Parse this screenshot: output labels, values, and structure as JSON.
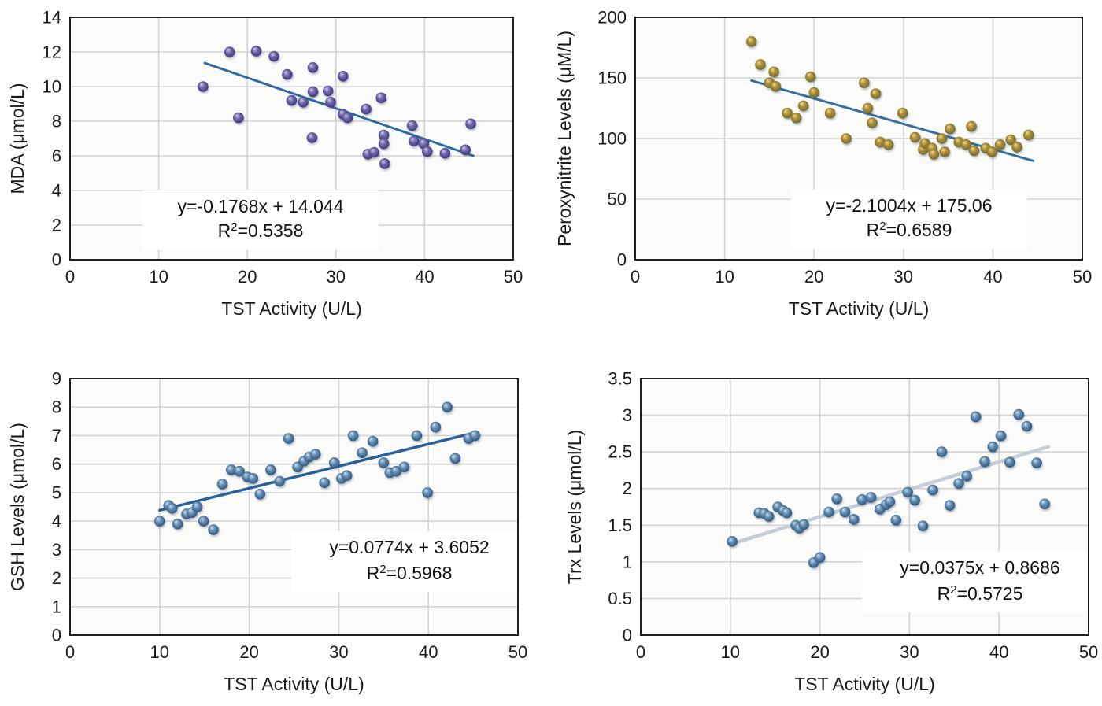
{
  "figure": {
    "shared_x_axis_title": "TST Activity (U/L)",
    "background_color": "#ffffff",
    "gridline_color": "#d2d3d5",
    "axis_border_color": "#1f1f1f",
    "tick_label_color": "#1a1a1a",
    "equation_text_color": "#101010"
  },
  "chart_data": [
    {
      "id": "mda",
      "type": "scatter",
      "title": "",
      "xlabel": "TST Activity (U/L)",
      "ylabel": "MDA (μmol/L)",
      "xlim": [
        0,
        50
      ],
      "ylim": [
        0,
        14
      ],
      "xticks": [
        0,
        10,
        20,
        30,
        40,
        50
      ],
      "yticks": [
        0,
        2,
        4,
        6,
        8,
        10,
        12,
        14
      ],
      "grid": true,
      "equation": "y=-0.1768x + 14.044",
      "r2_value": "0.5358",
      "trend": {
        "x1": 15.2,
        "y1": 11.36,
        "x2": 45.5,
        "y2": 6.0
      },
      "colors": {
        "trend": "#2f6da0",
        "marker_stops": [
          "#c9d3e8",
          "#7468ac",
          "#463f87",
          "#2c3266"
        ]
      },
      "points": [
        [
          15,
          10.0
        ],
        [
          18,
          12.0
        ],
        [
          21,
          12.05
        ],
        [
          23,
          11.75
        ],
        [
          24.5,
          10.7
        ],
        [
          27.4,
          11.1
        ],
        [
          19,
          8.2
        ],
        [
          25,
          9.2
        ],
        [
          26.3,
          9.1
        ],
        [
          27.4,
          9.7
        ],
        [
          29.1,
          9.75
        ],
        [
          29.4,
          9.1
        ],
        [
          27.3,
          7.05
        ],
        [
          30.8,
          10.6
        ],
        [
          30.8,
          8.4
        ],
        [
          31.3,
          8.2
        ],
        [
          33.4,
          8.7
        ],
        [
          35.1,
          9.35
        ],
        [
          33.6,
          6.1
        ],
        [
          34.3,
          6.2
        ],
        [
          35.4,
          7.2
        ],
        [
          35.4,
          6.7
        ],
        [
          35.5,
          5.55
        ],
        [
          38.6,
          7.75
        ],
        [
          38.8,
          6.85
        ],
        [
          39.9,
          6.7
        ],
        [
          40.3,
          6.25
        ],
        [
          42.3,
          6.15
        ],
        [
          44.6,
          6.35
        ],
        [
          45.2,
          7.85
        ]
      ]
    },
    {
      "id": "peroxynitrite",
      "type": "scatter",
      "title": "",
      "xlabel": "TST Activity (U/L)",
      "ylabel": "Peroxynitrite Levels (μM/L)",
      "xlim": [
        0,
        50
      ],
      "ylim": [
        0,
        200
      ],
      "xticks": [
        0,
        10,
        20,
        30,
        40,
        50
      ],
      "yticks": [
        0,
        50,
        100,
        150,
        200
      ],
      "grid": true,
      "equation": "y=-2.1004x + 175.06",
      "r2_value": "0.6589",
      "trend": {
        "x1": 13.0,
        "y1": 147.8,
        "x2": 44.5,
        "y2": 81.6
      },
      "colors": {
        "trend": "#35709f",
        "marker_stops": [
          "#e9dba2",
          "#b2902f",
          "#77713a",
          "#44504e"
        ]
      },
      "points": [
        [
          13,
          180
        ],
        [
          14,
          161
        ],
        [
          15.5,
          155
        ],
        [
          15,
          146
        ],
        [
          15.7,
          143
        ],
        [
          19.6,
          151
        ],
        [
          20,
          138
        ],
        [
          18.8,
          127
        ],
        [
          17,
          121
        ],
        [
          18,
          117
        ],
        [
          21.8,
          121
        ],
        [
          25.6,
          146
        ],
        [
          26.9,
          137
        ],
        [
          26,
          125
        ],
        [
          26.5,
          113
        ],
        [
          23.6,
          100
        ],
        [
          27.4,
          97
        ],
        [
          28.3,
          95
        ],
        [
          29.9,
          121
        ],
        [
          31.3,
          101
        ],
        [
          32.2,
          91
        ],
        [
          32.4,
          96
        ],
        [
          33.2,
          92
        ],
        [
          33.4,
          87
        ],
        [
          34.3,
          100
        ],
        [
          34.6,
          89
        ],
        [
          35.2,
          108
        ],
        [
          36.2,
          97
        ],
        [
          37.0,
          95
        ],
        [
          37.6,
          110
        ],
        [
          37.9,
          90
        ],
        [
          39.2,
          92
        ],
        [
          39.9,
          89
        ],
        [
          40.8,
          95
        ],
        [
          42.0,
          99
        ],
        [
          42.7,
          93
        ],
        [
          44.0,
          103
        ]
      ]
    },
    {
      "id": "gsh",
      "type": "scatter",
      "title": "",
      "xlabel": "TST Activity (U/L)",
      "ylabel": "GSH Levels (μmol/L)",
      "xlim": [
        0,
        50
      ],
      "ylim": [
        0,
        9
      ],
      "xticks": [
        0,
        10,
        20,
        30,
        40,
        50
      ],
      "yticks": [
        0,
        1,
        2,
        3,
        4,
        5,
        6,
        7,
        8,
        9
      ],
      "grid": true,
      "equation": "y=0.0774x + 3.6052",
      "r2_value": "0.5968",
      "trend": {
        "x1": 10.0,
        "y1": 4.38,
        "x2": 45.3,
        "y2": 7.11
      },
      "colors": {
        "trend": "#2b5f9a",
        "marker_stops": [
          "#d2dfec",
          "#6890b3",
          "#35608a",
          "#203e5e"
        ]
      },
      "points": [
        [
          10,
          4.0
        ],
        [
          11,
          4.55
        ],
        [
          11.4,
          4.45
        ],
        [
          12,
          3.9
        ],
        [
          13,
          4.25
        ],
        [
          13.6,
          4.3
        ],
        [
          14.2,
          4.5
        ],
        [
          14.9,
          4.0
        ],
        [
          16,
          3.7
        ],
        [
          17,
          5.3
        ],
        [
          18,
          5.8
        ],
        [
          18.9,
          5.75
        ],
        [
          19.8,
          5.55
        ],
        [
          20.4,
          5.5
        ],
        [
          21.2,
          4.95
        ],
        [
          22.4,
          5.8
        ],
        [
          23.4,
          5.4
        ],
        [
          24.4,
          6.9
        ],
        [
          25.4,
          5.9
        ],
        [
          26.1,
          6.1
        ],
        [
          26.7,
          6.25
        ],
        [
          27.4,
          6.35
        ],
        [
          28.4,
          5.35
        ],
        [
          29.5,
          6.05
        ],
        [
          30.3,
          5.5
        ],
        [
          30.9,
          5.6
        ],
        [
          31.6,
          7.0
        ],
        [
          32.6,
          6.4
        ],
        [
          33.8,
          6.8
        ],
        [
          35.0,
          6.05
        ],
        [
          35.7,
          5.7
        ],
        [
          36.4,
          5.75
        ],
        [
          37.3,
          5.9
        ],
        [
          38.7,
          7.0
        ],
        [
          39.9,
          5.0
        ],
        [
          40.8,
          7.3
        ],
        [
          42.1,
          8.0
        ],
        [
          43.0,
          6.2
        ],
        [
          44.5,
          6.9
        ],
        [
          45.2,
          7.0
        ]
      ]
    },
    {
      "id": "trx",
      "type": "scatter",
      "title": "",
      "xlabel": "TST Activity (U/L)",
      "ylabel": "Trx Levels (μmol/L)",
      "xlim": [
        0,
        50
      ],
      "ylim": [
        0,
        3.5
      ],
      "xticks": [
        0,
        10,
        20,
        30,
        40,
        50
      ],
      "yticks": [
        0,
        0.5,
        1,
        1.5,
        2,
        2.5,
        3,
        3.5
      ],
      "grid": true,
      "equation": "y=0.0375x + 0.8686",
      "r2_value": "0.5725",
      "trend": {
        "x1": 10.5,
        "y1": 1.26,
        "x2": 45.5,
        "y2": 2.57
      },
      "colors": {
        "trend": "#c4cdd8",
        "marker_stops": [
          "#d2dfec",
          "#6890b3",
          "#35608a",
          "#203e5e"
        ]
      },
      "points": [
        [
          10.2,
          1.28
        ],
        [
          13.2,
          1.67
        ],
        [
          13.8,
          1.66
        ],
        [
          14.3,
          1.62
        ],
        [
          15.3,
          1.75
        ],
        [
          15.9,
          1.7
        ],
        [
          16.3,
          1.67
        ],
        [
          17.3,
          1.5
        ],
        [
          17.7,
          1.46
        ],
        [
          18.2,
          1.51
        ],
        [
          19.3,
          0.99
        ],
        [
          20.0,
          1.06
        ],
        [
          21.0,
          1.68
        ],
        [
          21.9,
          1.86
        ],
        [
          22.8,
          1.68
        ],
        [
          23.8,
          1.58
        ],
        [
          24.7,
          1.85
        ],
        [
          25.7,
          1.88
        ],
        [
          26.7,
          1.72
        ],
        [
          27.4,
          1.78
        ],
        [
          27.8,
          1.82
        ],
        [
          28.5,
          1.57
        ],
        [
          29.8,
          1.95
        ],
        [
          30.6,
          1.84
        ],
        [
          31.5,
          1.49
        ],
        [
          32.6,
          1.98
        ],
        [
          33.6,
          2.5
        ],
        [
          34.5,
          1.77
        ],
        [
          35.5,
          2.07
        ],
        [
          36.4,
          2.17
        ],
        [
          37.4,
          2.98
        ],
        [
          38.4,
          2.37
        ],
        [
          39.3,
          2.57
        ],
        [
          40.2,
          2.72
        ],
        [
          41.2,
          2.36
        ],
        [
          42.2,
          3.01
        ],
        [
          43.1,
          2.85
        ],
        [
          44.2,
          2.35
        ],
        [
          45.1,
          1.79
        ]
      ]
    }
  ]
}
